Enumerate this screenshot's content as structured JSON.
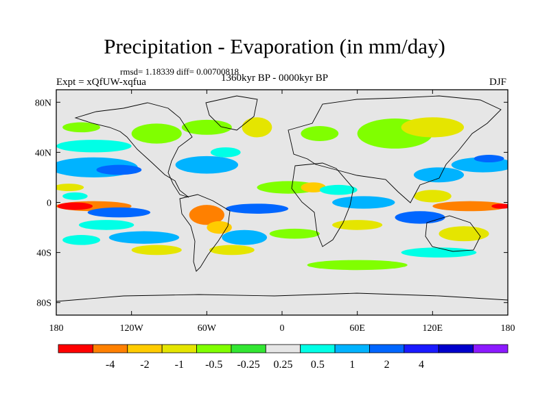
{
  "chart_data": {
    "type": "heatmap",
    "title": "Precipitation - Evaporation (in mm/day)",
    "stats": "rmsd= 1.18339 diff= 0.00700818",
    "experiment": "Expt = xQfUW-xqfua",
    "period": "1360kyr BP - 0000kyr BP",
    "season": "DJF",
    "x_ticks": [
      "180",
      "120W",
      "60W",
      "0",
      "60E",
      "120E",
      "180"
    ],
    "x_tick_values": [
      -180,
      -120,
      -60,
      0,
      60,
      120,
      180
    ],
    "y_ticks": [
      "80N",
      "40N",
      "0",
      "40S",
      "80S"
    ],
    "y_tick_values": [
      80,
      40,
      0,
      -40,
      -80
    ],
    "xlim": [
      -180,
      180
    ],
    "ylim": [
      -90,
      90
    ],
    "colorbar": {
      "colors": [
        "#ff0000",
        "#ff8000",
        "#ffcc00",
        "#e5e500",
        "#80ff00",
        "#33e633",
        "#e6e6e6",
        "#00ffe6",
        "#00b3ff",
        "#0066ff",
        "#1a1aff",
        "#0000cc",
        "#8c1aff"
      ],
      "labels": [
        "-4",
        "-2",
        "-1",
        "-0.5",
        "-0.25",
        "0.25",
        "0.5",
        "1",
        "2",
        "4"
      ]
    },
    "regions": [
      {
        "lon": -150,
        "lat": 28,
        "rx": 35,
        "ry": 8,
        "value": 1.5
      },
      {
        "lon": -130,
        "lat": 26,
        "rx": 18,
        "ry": 4,
        "value": 3
      },
      {
        "lon": -60,
        "lat": 30,
        "rx": 25,
        "ry": 7,
        "value": 1.5
      },
      {
        "lon": -45,
        "lat": 40,
        "rx": 12,
        "ry": 4,
        "value": 0.7
      },
      {
        "lon": -150,
        "lat": 45,
        "rx": 30,
        "ry": 5,
        "value": 0.7
      },
      {
        "lon": -60,
        "lat": 60,
        "rx": 20,
        "ry": 6,
        "value": -0.3
      },
      {
        "lon": -20,
        "lat": 60,
        "rx": 12,
        "ry": 8,
        "value": -0.7
      },
      {
        "lon": -160,
        "lat": 60,
        "rx": 15,
        "ry": 4,
        "value": -0.3
      },
      {
        "lon": -170,
        "lat": 12,
        "rx": 12,
        "ry": 3,
        "value": -0.7
      },
      {
        "lon": -150,
        "lat": -3,
        "rx": 30,
        "ry": 4,
        "value": -3
      },
      {
        "lon": -165,
        "lat": -3,
        "rx": 14,
        "ry": 3,
        "value": -5
      },
      {
        "lon": -130,
        "lat": -8,
        "rx": 25,
        "ry": 4,
        "value": 3
      },
      {
        "lon": -140,
        "lat": -18,
        "rx": 22,
        "ry": 4,
        "value": 0.7
      },
      {
        "lon": -110,
        "lat": -28,
        "rx": 28,
        "ry": 5,
        "value": 1.5
      },
      {
        "lon": -160,
        "lat": -30,
        "rx": 15,
        "ry": 4,
        "value": 0.7
      },
      {
        "lon": -100,
        "lat": -38,
        "rx": 20,
        "ry": 4,
        "value": -0.7
      },
      {
        "lon": -60,
        "lat": -10,
        "rx": 14,
        "ry": 8,
        "value": -2.5
      },
      {
        "lon": -50,
        "lat": -20,
        "rx": 10,
        "ry": 5,
        "value": -1.5
      },
      {
        "lon": -30,
        "lat": -28,
        "rx": 18,
        "ry": 6,
        "value": 1.5
      },
      {
        "lon": -40,
        "lat": -38,
        "rx": 18,
        "ry": 4,
        "value": -0.7
      },
      {
        "lon": -20,
        "lat": -5,
        "rx": 25,
        "ry": 4,
        "value": 3
      },
      {
        "lon": 5,
        "lat": 12,
        "rx": 25,
        "ry": 5,
        "value": -0.3
      },
      {
        "lon": 25,
        "lat": 12,
        "rx": 10,
        "ry": 4,
        "value": -2
      },
      {
        "lon": 45,
        "lat": 10,
        "rx": 15,
        "ry": 4,
        "value": 0.7
      },
      {
        "lon": 65,
        "lat": 0,
        "rx": 25,
        "ry": 5,
        "value": 1.5
      },
      {
        "lon": 60,
        "lat": -18,
        "rx": 20,
        "ry": 4,
        "value": -0.7
      },
      {
        "lon": 10,
        "lat": -25,
        "rx": 20,
        "ry": 4,
        "value": -0.3
      },
      {
        "lon": 125,
        "lat": 22,
        "rx": 20,
        "ry": 6,
        "value": 1.5
      },
      {
        "lon": 160,
        "lat": 30,
        "rx": 25,
        "ry": 6,
        "value": 1.5
      },
      {
        "lon": 165,
        "lat": 35,
        "rx": 12,
        "ry": 3,
        "value": 3
      },
      {
        "lon": 120,
        "lat": 5,
        "rx": 15,
        "ry": 5,
        "value": -0.7
      },
      {
        "lon": 150,
        "lat": -3,
        "rx": 30,
        "ry": 4,
        "value": -3
      },
      {
        "lon": 175,
        "lat": -3,
        "rx": 8,
        "ry": 2,
        "value": -5
      },
      {
        "lon": 110,
        "lat": -12,
        "rx": 20,
        "ry": 5,
        "value": 3
      },
      {
        "lon": 145,
        "lat": -25,
        "rx": 20,
        "ry": 6,
        "value": -0.7
      },
      {
        "lon": 125,
        "lat": -40,
        "rx": 30,
        "ry": 4,
        "value": 0.7
      },
      {
        "lon": 60,
        "lat": -50,
        "rx": 40,
        "ry": 4,
        "value": -0.3
      },
      {
        "lon": 90,
        "lat": 55,
        "rx": 30,
        "ry": 12,
        "value": -0.3
      },
      {
        "lon": 120,
        "lat": 60,
        "rx": 25,
        "ry": 8,
        "value": -0.7
      },
      {
        "lon": -100,
        "lat": 55,
        "rx": 20,
        "ry": 8,
        "value": -0.3
      },
      {
        "lon": 30,
        "lat": 55,
        "rx": 15,
        "ry": 6,
        "value": -0.3
      },
      {
        "lon": -165,
        "lat": 5,
        "rx": 10,
        "ry": 3,
        "value": 0.7
      }
    ]
  }
}
